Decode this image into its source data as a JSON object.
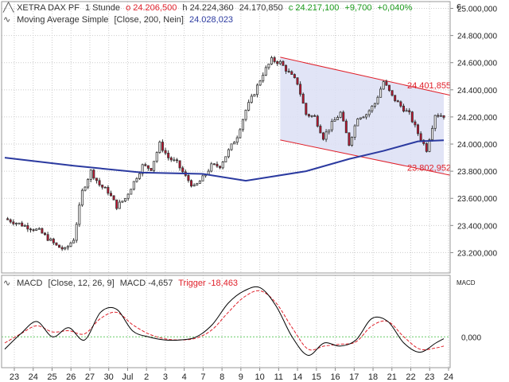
{
  "header": {
    "instrument": "XETRA DAX PF",
    "interval": "1 Stunde",
    "open": "o 24.206,500",
    "high": "h 24.224,360",
    "low": "24.170,850",
    "close": "c 24.217,100",
    "change": "+9,700",
    "change_pct": "+0,040%",
    "currency_symbol": "€",
    "sma_label": "Moving Average Simple",
    "sma_params": "[Close, 200, Nein]",
    "sma_value": "24.028,023"
  },
  "macd_header": {
    "label": "MACD",
    "params": "[Close, 12, 26, 9]",
    "macd_value": "MACD -4,657",
    "trigger_value": "Trigger -18,463",
    "axis_label": "MACD"
  },
  "colors": {
    "up": "#ffffff",
    "down": "#c8102e",
    "sma": "#2b3aa0",
    "channel": "#e0202a",
    "channel_fill": "#dcdff5",
    "macd": "#000000",
    "trigger": "#e0202a",
    "grid": "#cccccc",
    "zero_line": "#66cc66"
  },
  "chart_data": [
    {
      "type": "candlestick",
      "title": "XETRA DAX PF",
      "ylim": [
        23050,
        25050
      ],
      "yticks": [
        23200,
        23400,
        23600,
        23800,
        24000,
        24200,
        24400,
        24600,
        24800,
        25000
      ],
      "ytick_labels": [
        "23.200,000",
        "23.400,000",
        "23.600,000",
        "23.800,000",
        "24.000,000",
        "24.200,000",
        "24.400,000",
        "24.600,000",
        "24.800,000",
        "25.000,000"
      ],
      "x_tick_labels": [
        "23",
        "24",
        "25",
        "26",
        "27",
        "30",
        "Jul",
        "2",
        "3",
        "4",
        "7",
        "8",
        "9",
        "10",
        "11",
        "14",
        "15",
        "16",
        "17",
        "18",
        "21",
        "22",
        "23",
        "24"
      ],
      "close_path": [
        [
          0,
          23450
        ],
        [
          4,
          23360
        ],
        [
          6,
          23250
        ],
        [
          7,
          23220
        ],
        [
          8,
          23300
        ],
        [
          9,
          23650
        ],
        [
          10,
          23800
        ],
        [
          11,
          23700
        ],
        [
          12,
          23650
        ],
        [
          13,
          23540
        ],
        [
          14,
          23600
        ],
        [
          16,
          23840
        ],
        [
          17,
          23820
        ],
        [
          18,
          24000
        ],
        [
          19,
          23900
        ],
        [
          20,
          23860
        ],
        [
          21,
          23760
        ],
        [
          22,
          23680
        ],
        [
          23,
          23750
        ],
        [
          24,
          23840
        ],
        [
          25,
          23840
        ],
        [
          26,
          23950
        ],
        [
          27,
          24060
        ],
        [
          28,
          24250
        ],
        [
          29,
          24380
        ],
        [
          30,
          24520
        ],
        [
          31,
          24620
        ],
        [
          32,
          24600
        ],
        [
          34,
          24450
        ],
        [
          35,
          24220
        ],
        [
          36,
          24200
        ],
        [
          37,
          24050
        ],
        [
          38,
          24150
        ],
        [
          39,
          24230
        ],
        [
          40,
          24000
        ],
        [
          41,
          24200
        ],
        [
          42,
          24220
        ],
        [
          43,
          24300
        ],
        [
          44,
          24460
        ],
        [
          45,
          24350
        ],
        [
          46,
          24280
        ],
        [
          47,
          24220
        ],
        [
          48,
          24080
        ],
        [
          49,
          23960
        ],
        [
          50,
          24220
        ],
        [
          51,
          24210
        ]
      ],
      "series": [
        {
          "name": "Moving Average Simple",
          "points": [
            [
              0,
              23900
            ],
            [
              8,
              23840
            ],
            [
              16,
              23790
            ],
            [
              23,
              23780
            ],
            [
              28,
              23730
            ],
            [
              35,
              23800
            ],
            [
              40,
              23890
            ],
            [
              44,
              23950
            ],
            [
              48,
              24020
            ],
            [
              51,
              24028
            ]
          ]
        }
      ],
      "annotations": [
        {
          "type": "channel",
          "upper": [
            [
              32,
              24640
            ],
            [
              51,
              24370
            ]
          ],
          "lower": [
            [
              32,
              24030
            ],
            [
              51,
              23780
            ]
          ],
          "labels": [
            "24.401,855",
            "23.802,952"
          ]
        }
      ]
    },
    {
      "type": "line",
      "title": "MACD",
      "ytick_labels": [
        "0,000"
      ],
      "series": [
        {
          "name": "MACD",
          "points": [
            [
              0,
              -20
            ],
            [
              2,
              5
            ],
            [
              4,
              25
            ],
            [
              6,
              0
            ],
            [
              8,
              15
            ],
            [
              10,
              -5
            ],
            [
              12,
              40
            ],
            [
              14,
              45
            ],
            [
              16,
              10
            ],
            [
              18,
              0
            ],
            [
              20,
              -5
            ],
            [
              22,
              -5
            ],
            [
              24,
              0
            ],
            [
              26,
              20
            ],
            [
              28,
              55
            ],
            [
              30,
              75
            ],
            [
              32,
              80
            ],
            [
              34,
              50
            ],
            [
              36,
              0
            ],
            [
              38,
              -30
            ],
            [
              40,
              -10
            ],
            [
              42,
              -15
            ],
            [
              44,
              -5
            ],
            [
              46,
              30
            ],
            [
              48,
              25
            ],
            [
              50,
              -10
            ],
            [
              52,
              -25
            ],
            [
              54,
              -10
            ],
            [
              55,
              -3
            ]
          ]
        },
        {
          "name": "Trigger",
          "points": [
            [
              0,
              -10
            ],
            [
              2,
              5
            ],
            [
              4,
              18
            ],
            [
              6,
              8
            ],
            [
              8,
              10
            ],
            [
              10,
              5
            ],
            [
              12,
              30
            ],
            [
              14,
              40
            ],
            [
              16,
              20
            ],
            [
              18,
              5
            ],
            [
              20,
              -3
            ],
            [
              22,
              -5
            ],
            [
              24,
              -2
            ],
            [
              26,
              12
            ],
            [
              28,
              40
            ],
            [
              30,
              65
            ],
            [
              32,
              75
            ],
            [
              34,
              55
            ],
            [
              36,
              15
            ],
            [
              38,
              -20
            ],
            [
              40,
              -15
            ],
            [
              42,
              -12
            ],
            [
              44,
              -8
            ],
            [
              46,
              18
            ],
            [
              48,
              25
            ],
            [
              50,
              0
            ],
            [
              52,
              -20
            ],
            [
              54,
              -18
            ],
            [
              55,
              -15
            ]
          ]
        }
      ]
    }
  ]
}
